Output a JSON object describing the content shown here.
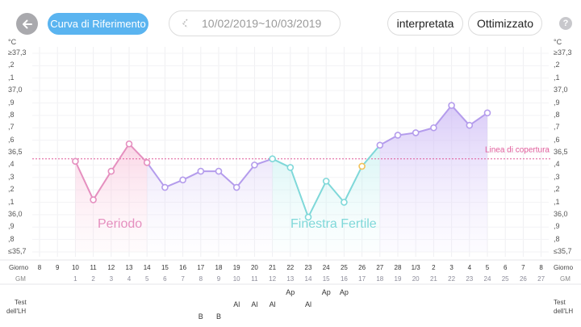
{
  "header": {
    "reference_curve_label": "Curva di Riferimento",
    "date_range": "10/02/2019~10/03/2019",
    "interpreted_label": "interpretata",
    "optimized_label": "Ottimizzato",
    "help_label": "?"
  },
  "y_axis": {
    "unit": "°C",
    "ticks_left": [
      "≥37,3",
      ",2",
      ",1",
      "37,0",
      ",9",
      ",8",
      ",7",
      ",6",
      "36,5",
      ",4",
      ",3",
      ",2",
      ",1",
      "36,0",
      ",9",
      ",8",
      "≤35,7"
    ],
    "ticks_right": [
      "≥37,3",
      ",2",
      ",1",
      "37,0",
      ",9",
      ",8",
      ",7",
      ",6",
      "36,5",
      ",4",
      ",3",
      ",2",
      ",1",
      "36,0",
      ",9",
      ",8",
      "≤35,7"
    ]
  },
  "cover_line_label": "Linea di copertura",
  "period_label": "Periodo",
  "fertile_label": "Finestra Fertile",
  "rows": {
    "day_label": "Giorno",
    "cycle_day_label": "GM",
    "lh_test_label_1": "Test",
    "lh_test_label_2": "dell'LH"
  },
  "chart_data": {
    "type": "line",
    "title": "",
    "xlabel": "Giorno",
    "ylabel": "°C",
    "ylim": [
      35.7,
      37.3
    ],
    "days": [
      "8",
      "9",
      "10",
      "11",
      "12",
      "13",
      "14",
      "15",
      "16",
      "17",
      "18",
      "19",
      "20",
      "21",
      "22",
      "23",
      "24",
      "25",
      "26",
      "27",
      "28",
      "1/3",
      "2",
      "3",
      "4",
      "5",
      "6",
      "7",
      "8"
    ],
    "cycle_days": [
      "",
      "",
      "1",
      "2",
      "3",
      "4",
      "5",
      "6",
      "7",
      "8",
      "9",
      "10",
      "11",
      "12",
      "13",
      "14",
      "15",
      "16",
      "17",
      "18",
      "19",
      "20",
      "21",
      "22",
      "23",
      "24",
      "25",
      "26",
      "27"
    ],
    "temperatures": [
      null,
      null,
      36.43,
      36.12,
      36.35,
      36.57,
      36.42,
      36.22,
      36.28,
      36.35,
      36.35,
      36.22,
      36.4,
      36.45,
      36.38,
      35.98,
      36.27,
      36.1,
      36.39,
      36.56,
      36.64,
      36.66,
      36.7,
      36.88,
      36.72,
      36.82,
      null,
      null,
      null
    ],
    "cover_line": 36.45,
    "period_cycle_days": [
      1,
      5
    ],
    "fertile_cycle_days": [
      12,
      17
    ],
    "ovulation_cycle_day": 17,
    "lh_tests": [
      {
        "cycle_day": 8,
        "row": 2,
        "label": "B"
      },
      {
        "cycle_day": 9,
        "row": 2,
        "label": "B"
      },
      {
        "cycle_day": 10,
        "row": 1,
        "label": "Al"
      },
      {
        "cycle_day": 11,
        "row": 1,
        "label": "Al"
      },
      {
        "cycle_day": 12,
        "row": 1,
        "label": "Al"
      },
      {
        "cycle_day": 13,
        "row": 0,
        "label": "Ap"
      },
      {
        "cycle_day": 14,
        "row": 1,
        "label": "Al"
      },
      {
        "cycle_day": 15,
        "row": 0,
        "label": "Ap"
      },
      {
        "cycle_day": 16,
        "row": 0,
        "label": "Ap"
      }
    ]
  },
  "colors": {
    "period": "#e58fbf",
    "fertile": "#7fd8d9",
    "luteal": "#b49cec",
    "ovulation": "#f2c25a",
    "cover_line": "#e05b9a",
    "accent": "#5ab4f0"
  }
}
